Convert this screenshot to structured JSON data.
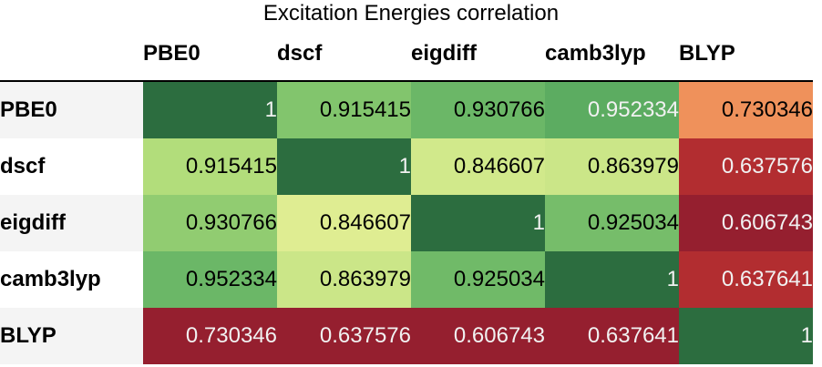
{
  "chart_data": {
    "type": "heatmap",
    "title": "Excitation Energies correlation",
    "columns": [
      "PBE0",
      "dscf",
      "eigdiff",
      "camb3lyp",
      "BLYP"
    ],
    "rows": [
      "PBE0",
      "dscf",
      "eigdiff",
      "camb3lyp",
      "BLYP"
    ],
    "values": [
      [
        "1",
        "0.915415",
        "0.930766",
        "0.952334",
        "0.730346"
      ],
      [
        "0.915415",
        "1",
        "0.846607",
        "0.863979",
        "0.637576"
      ],
      [
        "0.930766",
        "0.846607",
        "1",
        "0.925034",
        "0.606743"
      ],
      [
        "0.952334",
        "0.863979",
        "0.925034",
        "1",
        "0.637641"
      ],
      [
        "0.730346",
        "0.637576",
        "0.606743",
        "0.637641",
        "1"
      ]
    ],
    "colormap": "RdYlGn",
    "colors": {
      "high": "#2c6d3f",
      "low": "#951f2f"
    }
  }
}
